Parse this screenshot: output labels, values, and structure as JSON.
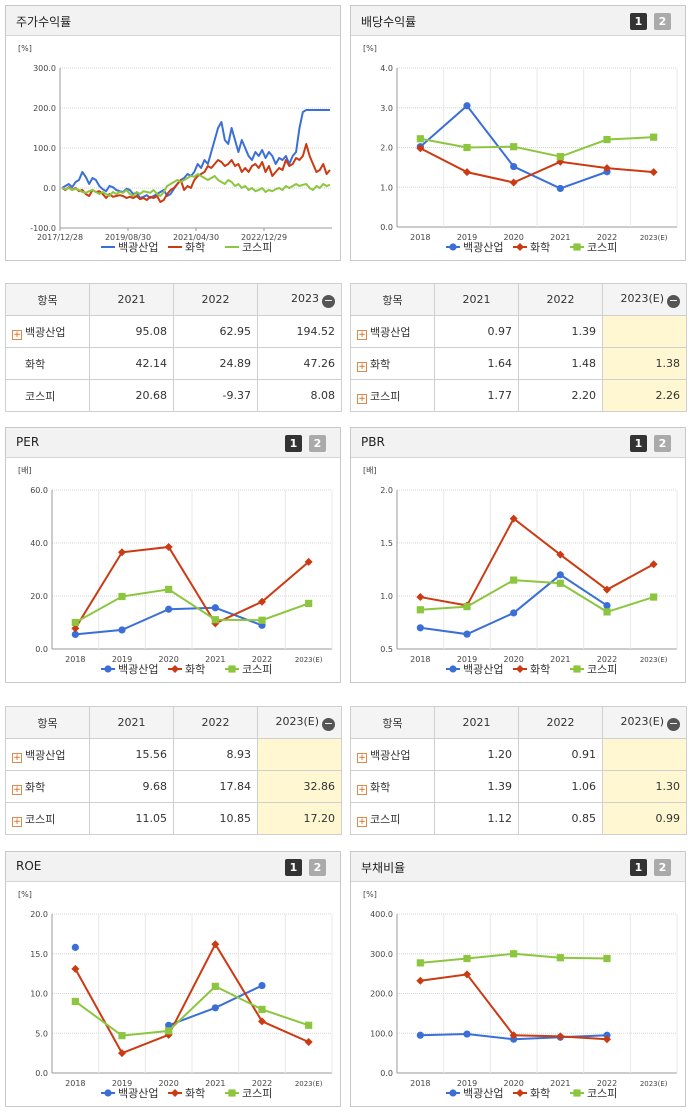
{
  "colors": {
    "baekkwang": "#3a6fd8",
    "chem": "#cc3a12",
    "kospi": "#8cc63f"
  },
  "legend": [
    "백광산업",
    "화학",
    "코스피"
  ],
  "stock_return": {
    "title": "주가수익률",
    "unit": "[%]",
    "chart_data": {
      "type": "line",
      "title": "주가수익률",
      "ylim": [
        -100,
        300
      ],
      "yticks": [
        "300.0",
        "200.0",
        "100.0",
        "0.0",
        "-100.0"
      ],
      "xticks": [
        "2017/12/28",
        "2019/08/30",
        "2021/04/30",
        "2022/12/29"
      ],
      "series": [
        {
          "name": "백광산업",
          "values": [
            0,
            5,
            10,
            2,
            15,
            20,
            40,
            28,
            10,
            25,
            20,
            5,
            -3,
            -8,
            5,
            2,
            -5,
            -8,
            -10,
            -2,
            -5,
            -15,
            -12,
            -25,
            -22,
            -18,
            -25,
            -20,
            -15,
            -10,
            -5,
            -20,
            -15,
            -2,
            10,
            20,
            25,
            35,
            30,
            40,
            60,
            50,
            70,
            60,
            90,
            120,
            150,
            165,
            120,
            110,
            150,
            120,
            90,
            120,
            100,
            80,
            70,
            90,
            80,
            95,
            75,
            90,
            80,
            60,
            75,
            70,
            80,
            60,
            80,
            90,
            150,
            190,
            195,
            195,
            195,
            195,
            195,
            195,
            195,
            195
          ]
        },
        {
          "name": "화학",
          "values": [
            0,
            -5,
            2,
            -5,
            0,
            -8,
            -5,
            -15,
            -20,
            -5,
            -10,
            -8,
            -15,
            -25,
            -15,
            -22,
            -20,
            -18,
            -20,
            -25,
            -22,
            -25,
            -20,
            -28,
            -25,
            -30,
            -22,
            -25,
            -20,
            -35,
            -30,
            -15,
            -5,
            0,
            10,
            20,
            -5,
            5,
            0,
            20,
            30,
            35,
            40,
            55,
            50,
            60,
            70,
            65,
            55,
            60,
            70,
            55,
            60,
            40,
            50,
            40,
            55,
            60,
            50,
            65,
            40,
            55,
            30,
            40,
            50,
            45,
            70,
            55,
            60,
            75,
            70,
            80,
            110,
            80,
            60,
            40,
            45,
            60,
            35,
            45
          ]
        },
        {
          "name": "코스피",
          "values": [
            0,
            -3,
            0,
            -5,
            -2,
            -5,
            -10,
            -12,
            -8,
            -5,
            -10,
            -15,
            -10,
            -15,
            -20,
            -10,
            -15,
            -10,
            -12,
            -5,
            -15,
            -20,
            -10,
            -15,
            -8,
            -10,
            -12,
            -5,
            -15,
            -20,
            -10,
            5,
            10,
            15,
            20,
            15,
            20,
            25,
            30,
            28,
            35,
            30,
            25,
            20,
            25,
            30,
            20,
            15,
            10,
            20,
            15,
            5,
            10,
            0,
            5,
            -5,
            0,
            -8,
            -5,
            0,
            -10,
            -5,
            -8,
            -3,
            0,
            -5,
            5,
            0,
            5,
            10,
            5,
            8,
            10,
            0,
            -5,
            5,
            0,
            10,
            5,
            8
          ]
        }
      ]
    }
  },
  "stock_table": {
    "head": [
      "항목",
      "2021",
      "2022",
      "2023"
    ],
    "rows": [
      {
        "name": "백광산업",
        "plus": true,
        "v": [
          "95.08",
          "62.95",
          "194.52"
        ]
      },
      {
        "name": "화학",
        "plus": false,
        "v": [
          "42.14",
          "24.89",
          "47.26"
        ]
      },
      {
        "name": "코스피",
        "plus": false,
        "v": [
          "20.68",
          "-9.37",
          "8.08"
        ]
      }
    ]
  },
  "dividend": {
    "title": "배당수익률",
    "unit": "[%]",
    "pages": [
      "1",
      "2"
    ],
    "chart_data": {
      "type": "line",
      "title": "배당수익률",
      "ylim": [
        0,
        4
      ],
      "yticks": [
        "4.0",
        "3.0",
        "2.0",
        "1.0",
        "0.0"
      ],
      "categories": [
        "2018",
        "2019",
        "2020",
        "2021",
        "2022",
        "2023(E)"
      ],
      "series": [
        {
          "name": "백광산업",
          "values": [
            2.02,
            3.05,
            1.52,
            0.97,
            1.39,
            null
          ]
        },
        {
          "name": "화학",
          "values": [
            1.98,
            1.38,
            1.12,
            1.64,
            1.48,
            1.38
          ]
        },
        {
          "name": "코스피",
          "values": [
            2.22,
            2.0,
            2.02,
            1.77,
            2.2,
            2.26
          ]
        }
      ]
    }
  },
  "dividend_table": {
    "head": [
      "항목",
      "2021",
      "2022",
      "2023(E)"
    ],
    "rows": [
      {
        "name": "백광산업",
        "v": [
          "0.97",
          "1.39",
          ""
        ]
      },
      {
        "name": "화학",
        "v": [
          "1.64",
          "1.48",
          "1.38"
        ]
      },
      {
        "name": "코스피",
        "v": [
          "1.77",
          "2.20",
          "2.26"
        ]
      }
    ]
  },
  "per": {
    "title": "PER",
    "unit": "[배]",
    "pages": [
      "1",
      "2"
    ],
    "chart_data": {
      "type": "line",
      "title": "PER",
      "ylim": [
        0,
        60
      ],
      "yticks": [
        "60.0",
        "40.0",
        "20.0",
        "0.0"
      ],
      "categories": [
        "2018",
        "2019",
        "2020",
        "2021",
        "2022",
        "2023(E)"
      ],
      "series": [
        {
          "name": "백광산업",
          "values": [
            5.5,
            7.2,
            15.0,
            15.56,
            8.93,
            null
          ]
        },
        {
          "name": "화학",
          "values": [
            7.8,
            36.5,
            38.5,
            9.68,
            17.84,
            32.86
          ]
        },
        {
          "name": "코스피",
          "values": [
            10.0,
            19.8,
            22.5,
            11.05,
            10.85,
            17.2
          ]
        }
      ]
    }
  },
  "per_table": {
    "head": [
      "항목",
      "2021",
      "2022",
      "2023(E)"
    ],
    "rows": [
      {
        "name": "백광산업",
        "v": [
          "15.56",
          "8.93",
          ""
        ]
      },
      {
        "name": "화학",
        "v": [
          "9.68",
          "17.84",
          "32.86"
        ]
      },
      {
        "name": "코스피",
        "v": [
          "11.05",
          "10.85",
          "17.20"
        ]
      }
    ]
  },
  "pbr": {
    "title": "PBR",
    "unit": "[배]",
    "pages": [
      "1",
      "2"
    ],
    "chart_data": {
      "type": "line",
      "title": "PBR",
      "ylim": [
        0.5,
        2.0
      ],
      "yticks": [
        "2.0",
        "1.5",
        "1.0",
        "0.5"
      ],
      "categories": [
        "2018",
        "2019",
        "2020",
        "2021",
        "2022",
        "2023(E)"
      ],
      "series": [
        {
          "name": "백광산업",
          "values": [
            0.7,
            0.64,
            0.84,
            1.2,
            0.91,
            null
          ]
        },
        {
          "name": "화학",
          "values": [
            0.99,
            0.91,
            1.73,
            1.39,
            1.06,
            1.3
          ]
        },
        {
          "name": "코스피",
          "values": [
            0.87,
            0.9,
            1.15,
            1.12,
            0.85,
            0.99
          ]
        }
      ]
    }
  },
  "pbr_table": {
    "head": [
      "항목",
      "2021",
      "2022",
      "2023(E)"
    ],
    "rows": [
      {
        "name": "백광산업",
        "v": [
          "1.20",
          "0.91",
          ""
        ]
      },
      {
        "name": "화학",
        "v": [
          "1.39",
          "1.06",
          "1.30"
        ]
      },
      {
        "name": "코스피",
        "v": [
          "1.12",
          "0.85",
          "0.99"
        ]
      }
    ]
  },
  "roe": {
    "title": "ROE",
    "unit": "[%]",
    "pages": [
      "1",
      "2"
    ],
    "chart_data": {
      "type": "line",
      "title": "ROE",
      "ylim": [
        0,
        20
      ],
      "yticks": [
        "20.0",
        "15.0",
        "10.0",
        "5.0",
        "0.0"
      ],
      "categories": [
        "2018",
        "2019",
        "2020",
        "2021",
        "2022",
        "2023(E)"
      ],
      "series": [
        {
          "name": "백광산업",
          "values": [
            15.8,
            null,
            6.0,
            8.2,
            11.0,
            null
          ]
        },
        {
          "name": "화학",
          "values": [
            13.1,
            2.5,
            4.8,
            16.2,
            6.5,
            3.9
          ]
        },
        {
          "name": "코스피",
          "values": [
            9.0,
            4.7,
            5.3,
            10.9,
            8.0,
            6.0
          ]
        }
      ]
    }
  },
  "debt": {
    "title": "부채비율",
    "unit": "[%]",
    "pages": [
      "1",
      "2"
    ],
    "chart_data": {
      "type": "line",
      "title": "부채비율",
      "ylim": [
        0,
        400
      ],
      "yticks": [
        "400.0",
        "300.0",
        "200.0",
        "100.0",
        "0.0"
      ],
      "categories": [
        "2018",
        "2019",
        "2020",
        "2021",
        "2022",
        "2023(E)"
      ],
      "series": [
        {
          "name": "백광산업",
          "values": [
            95,
            98,
            85,
            90,
            95,
            null
          ]
        },
        {
          "name": "화학",
          "values": [
            232,
            248,
            95,
            92,
            85,
            null
          ]
        },
        {
          "name": "코스피",
          "values": [
            277,
            288,
            300,
            290,
            288,
            null
          ]
        }
      ]
    }
  }
}
